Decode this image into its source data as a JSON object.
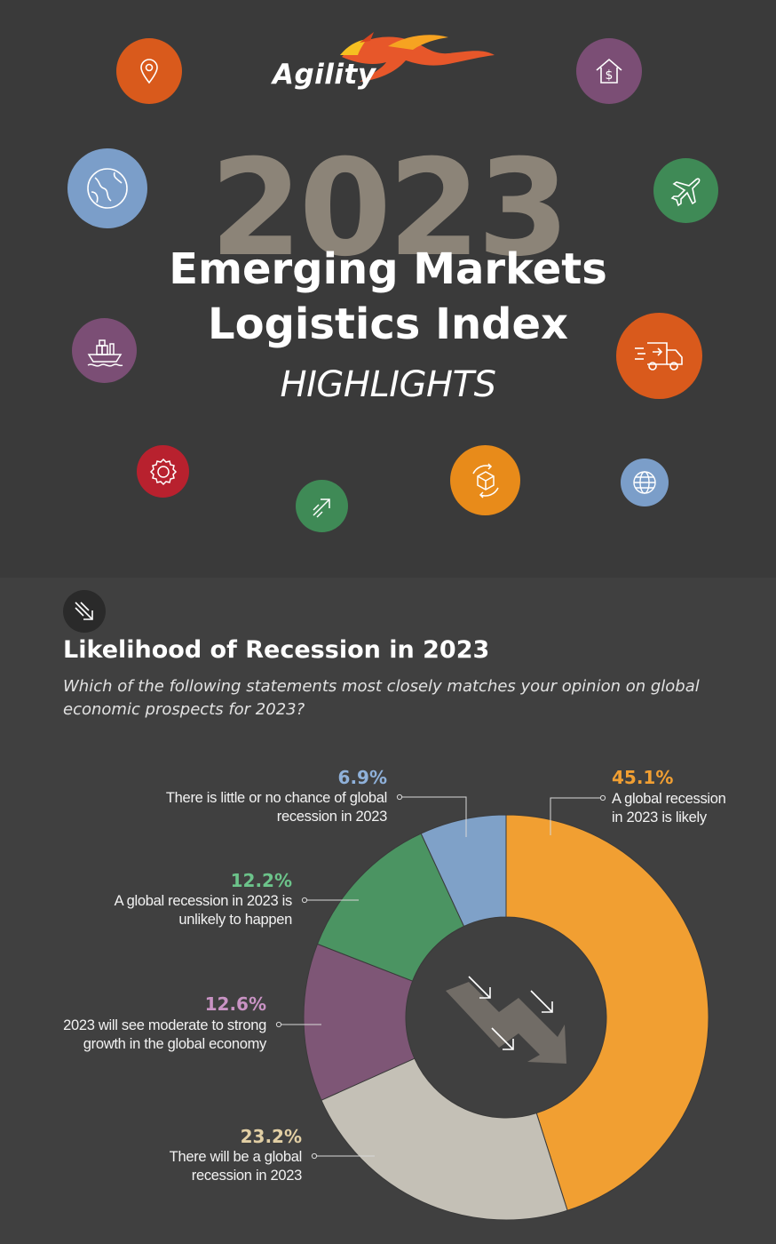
{
  "brand": {
    "name": "Agility"
  },
  "hero": {
    "year": "2023",
    "title_line1": "Emerging Markets",
    "title_line2": "Logistics Index",
    "subtitle": "HIGHLIGHTS",
    "icons": [
      {
        "name": "location-pin-icon",
        "color": "#d95a1c"
      },
      {
        "name": "dollar-house-icon",
        "color": "#7b4e75"
      },
      {
        "name": "globe-icon",
        "color": "#7b9ec9"
      },
      {
        "name": "airplane-icon",
        "color": "#3f8a56"
      },
      {
        "name": "cargo-ship-icon",
        "color": "#7b4e75"
      },
      {
        "name": "delivery-truck-icon",
        "color": "#d95a1c"
      },
      {
        "name": "gear-icon",
        "color": "#b8212e"
      },
      {
        "name": "growth-arrow-icon",
        "color": "#3f8a56"
      },
      {
        "name": "package-cycle-icon",
        "color": "#e88b1a"
      },
      {
        "name": "globe-grid-icon",
        "color": "#7b9ec9"
      }
    ]
  },
  "section": {
    "icon": "downtrend-arrow-icon",
    "title": "Likelihood of Recession in 2023",
    "question": "Which of the following statements most closely matches your opinion on global economic prospects for 2023?"
  },
  "chart_data": {
    "type": "pie",
    "variant": "donut",
    "center_icon": "downtrend-arrows-icon",
    "slices": [
      {
        "label_lines": [
          "A global recession",
          "in 2023 is likely"
        ],
        "value": 45.1,
        "pct_label": "45.1%",
        "color": "#f19f32"
      },
      {
        "label_lines": [
          "There will be a global",
          "recession in 2023"
        ],
        "value": 23.2,
        "pct_label": "23.2%",
        "color": "#c4c0b6",
        "pct_color": "#e2cfa4"
      },
      {
        "label_lines": [
          "2023 will see moderate to strong",
          "growth in the global economy"
        ],
        "value": 12.6,
        "pct_label": "12.6%",
        "color": "#7e5676",
        "pct_color": "#c993c4"
      },
      {
        "label_lines": [
          "A global recession in 2023 is",
          "unlikely to happen"
        ],
        "value": 12.2,
        "pct_label": "12.2%",
        "color": "#4b9462",
        "pct_color": "#6cc38a"
      },
      {
        "label_lines": [
          "There is little or no chance of global",
          "recession in 2023"
        ],
        "value": 6.9,
        "pct_label": "6.9%",
        "color": "#7fa1c8",
        "pct_color": "#8fb1da"
      }
    ]
  }
}
